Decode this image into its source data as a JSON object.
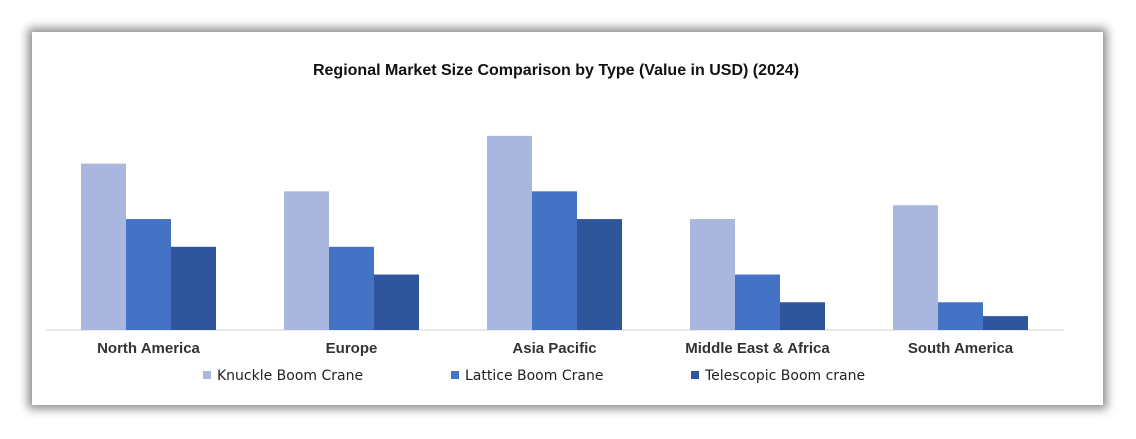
{
  "chart_data": {
    "type": "bar",
    "title": "Regional Market Size Comparison by Type (Value in USD) (2024)",
    "xlabel": "",
    "ylabel": "",
    "categories": [
      "North America",
      "Europe",
      "Asia Pacific",
      "Middle East & Africa",
      "South America"
    ],
    "series": [
      {
        "name": "Knuckle Boom Crane",
        "color": "#A9B6DE",
        "values": [
          6.0,
          5.0,
          7.0,
          4.0,
          4.5
        ]
      },
      {
        "name": "Lattice Boom Crane",
        "color": "#4472C4",
        "values": [
          4.0,
          3.0,
          5.0,
          2.0,
          1.0
        ]
      },
      {
        "name": "Telescopic Boom crane",
        "color": "#2F559C",
        "values": [
          3.0,
          2.0,
          4.0,
          1.0,
          0.5
        ]
      }
    ],
    "ylim": [
      0,
      7.5
    ],
    "grid": false,
    "legend": "bottom"
  }
}
